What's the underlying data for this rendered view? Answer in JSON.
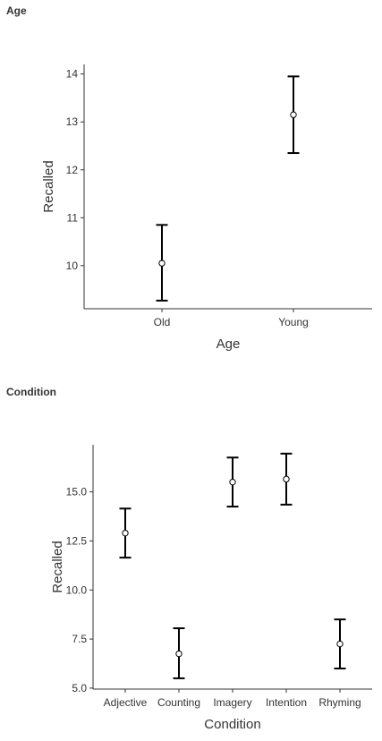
{
  "sections": [
    {
      "title": "Age"
    },
    {
      "title": "Condition"
    }
  ],
  "chart_data": [
    {
      "type": "scatter",
      "title": "Age",
      "xlabel": "Age",
      "ylabel": "Recalled",
      "categories": [
        "Old",
        "Young"
      ],
      "values": [
        10.05,
        13.15
      ],
      "lower": [
        9.27,
        12.35
      ],
      "upper": [
        10.85,
        13.95
      ],
      "ylim": [
        9.1,
        14.2
      ],
      "yticks": [
        10,
        11,
        12,
        13,
        14
      ],
      "ytick_labels": [
        "10",
        "11",
        "12",
        "13",
        "14"
      ],
      "grid": false
    },
    {
      "type": "scatter",
      "title": "Condition",
      "xlabel": "Condition",
      "ylabel": "Recalled",
      "categories": [
        "Adjective",
        "Counting",
        "Imagery",
        "Intention",
        "Rhyming"
      ],
      "values": [
        12.9,
        6.75,
        15.5,
        15.65,
        7.25
      ],
      "lower": [
        11.65,
        5.5,
        14.25,
        14.35,
        6.0
      ],
      "upper": [
        14.15,
        8.05,
        16.75,
        16.95,
        8.5
      ],
      "ylim": [
        4.95,
        17.4
      ],
      "yticks": [
        5,
        7.5,
        10,
        12.5,
        15
      ],
      "ytick_labels": [
        "5.0",
        "7.5",
        "10.0",
        "12.5",
        "15.0"
      ],
      "grid": false
    }
  ]
}
